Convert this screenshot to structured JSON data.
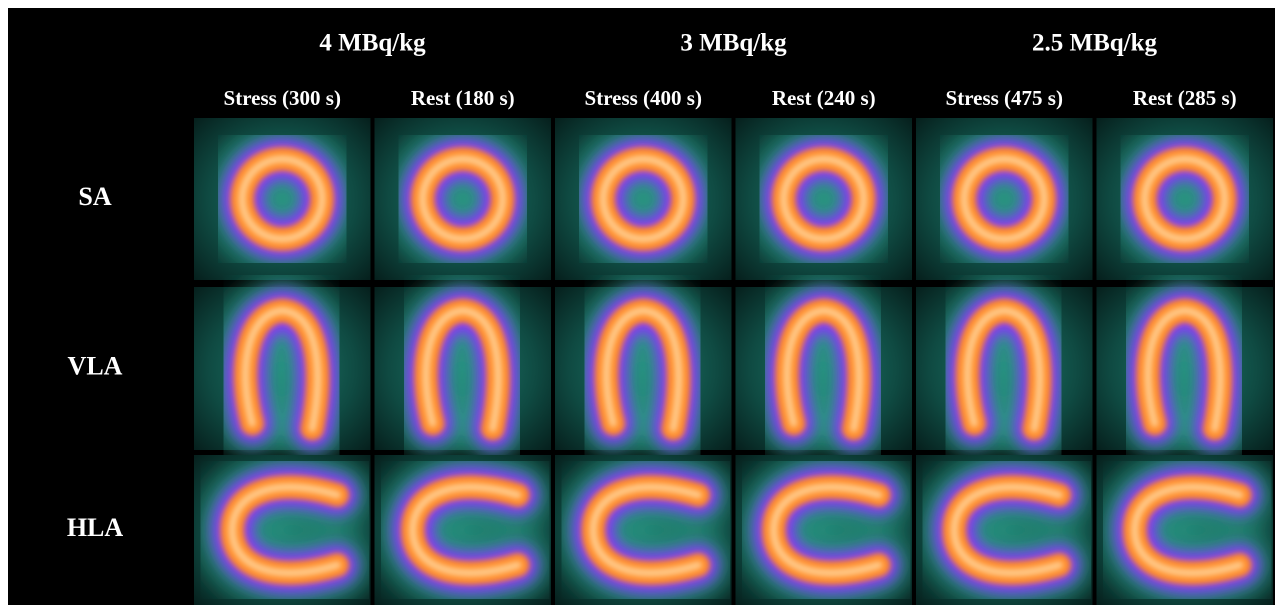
{
  "dose_groups": [
    {
      "label": "4 MBq/kg",
      "columns": [
        "Stress (300 s)",
        "Rest (180 s)"
      ]
    },
    {
      "label": "3 MBq/kg",
      "columns": [
        "Stress (400 s)",
        "Rest (240 s)"
      ]
    },
    {
      "label": "2.5 MBq/kg",
      "columns": [
        "Stress (475 s)",
        "Rest (285 s)"
      ]
    }
  ],
  "rows": [
    "SA",
    "VLA",
    "HLA"
  ]
}
